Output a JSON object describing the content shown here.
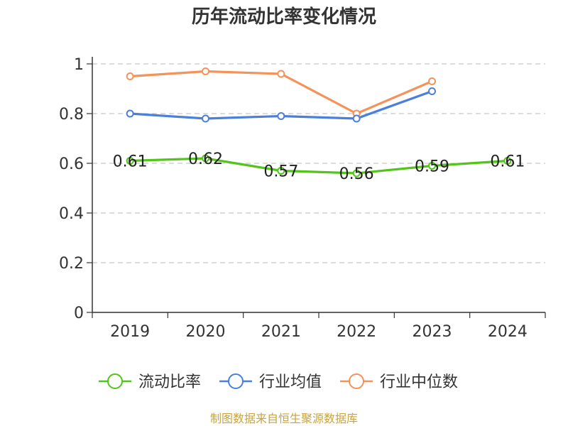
{
  "colors": {
    "current_ratio": "#52c41a",
    "industry_mean": "#4a7fdb",
    "industry_median": "#f5925a",
    "grid": "#c8c8c8",
    "axis": "#333333",
    "source": "#c9a33b"
  },
  "chart_data": {
    "type": "line",
    "title": "历年流动比率变化情况",
    "categories": [
      "2019",
      "2020",
      "2021",
      "2022",
      "2023",
      "2024"
    ],
    "y_ticks": [
      "0",
      "0.2",
      "0.4",
      "0.6",
      "0.8",
      "1"
    ],
    "ylim": [
      0,
      1
    ],
    "grid": true,
    "legend_position": "bottom",
    "series": [
      {
        "name": "流动比率",
        "color_key": "current_ratio",
        "values": [
          0.61,
          0.62,
          0.57,
          0.56,
          0.59,
          0.61
        ],
        "labels": [
          "0.61",
          "0.62",
          "0.57",
          "0.56",
          "0.59",
          "0.61"
        ]
      },
      {
        "name": "行业均值",
        "color_key": "industry_mean",
        "values": [
          0.8,
          0.78,
          0.79,
          0.78,
          0.89,
          null
        ]
      },
      {
        "name": "行业中位数",
        "color_key": "industry_median",
        "values": [
          0.95,
          0.97,
          0.96,
          0.8,
          0.93,
          null
        ]
      }
    ],
    "source": "制图数据来自恒生聚源数据库"
  }
}
